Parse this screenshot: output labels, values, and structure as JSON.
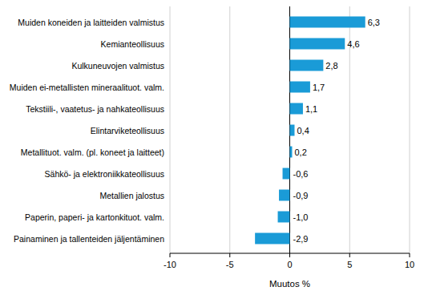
{
  "chart_data": {
    "type": "bar",
    "orientation": "horizontal",
    "categories": [
      "Muiden koneiden ja laitteiden valmistus",
      "Kemianteollisuus",
      "Kulkuneuvojen valmistus",
      "Muiden ei-metallisten mineraalituot. valm.",
      "Tekstiili-, vaatetus- ja nahkateollisuus",
      "Elintarviketeollisuus",
      "Metallituot. valm. (pl. koneet ja laitteet)",
      "Sähkö- ja elektroniikkateollisuus",
      "Metallien jalostus",
      "Paperin, paperi- ja kartonkituot. valm.",
      "Painaminen ja tallenteiden jäljentäminen"
    ],
    "values": [
      6.3,
      4.6,
      2.8,
      1.7,
      1.1,
      0.4,
      0.2,
      -0.6,
      -0.9,
      -1.0,
      -2.9
    ],
    "value_labels": [
      "6,3",
      "4,6",
      "2,8",
      "1,7",
      "1,1",
      "0,4",
      "0,2",
      "-0,6",
      "-0,9",
      "-1,0",
      "-2,9"
    ],
    "color": "#1a9bd7",
    "xlabel": "Muutos %",
    "xlim": [
      -10,
      10
    ],
    "xticks": [
      -10,
      -5,
      0,
      5,
      10
    ],
    "grid": true,
    "data_labels": true
  }
}
